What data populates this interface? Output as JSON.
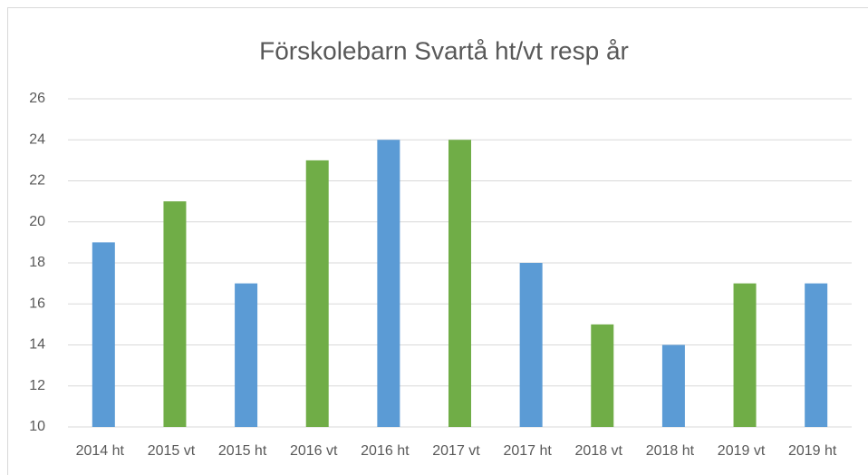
{
  "chart_data": {
    "type": "bar",
    "title": "Förskolebarn Svartå ht/vt resp år",
    "categories": [
      "2014 ht",
      "2015 vt",
      "2015 ht",
      "2016 vt",
      "2016 ht",
      "2017 vt",
      "2017 ht",
      "2018 vt",
      "2018 ht",
      "2019 vt",
      "2019 ht"
    ],
    "values": [
      19,
      21,
      17,
      23,
      24,
      24,
      18,
      15,
      14,
      17,
      17
    ],
    "colors": [
      "#5b9bd5",
      "#70ad47",
      "#5b9bd5",
      "#70ad47",
      "#5b9bd5",
      "#70ad47",
      "#5b9bd5",
      "#70ad47",
      "#5b9bd5",
      "#70ad47",
      "#5b9bd5"
    ],
    "ylim": [
      10,
      26
    ],
    "yticks": [
      10,
      12,
      14,
      16,
      18,
      20,
      22,
      24,
      26
    ],
    "grid": true
  }
}
